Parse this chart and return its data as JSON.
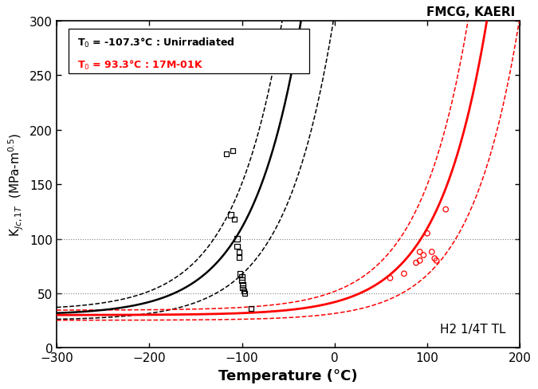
{
  "title_text": "FMCG, KAERI",
  "xlabel": "Temperature (°C)",
  "ylabel": "K$_{Jc,1T}$  (MPa-m$^{0.5}$)",
  "xlim": [
    -300,
    200
  ],
  "ylim": [
    0,
    300
  ],
  "xticks": [
    -300,
    -200,
    -100,
    0,
    100,
    200
  ],
  "yticks": [
    0,
    50,
    100,
    150,
    200,
    250,
    300
  ],
  "hlines": [
    50,
    100
  ],
  "T0_black": -107.3,
  "T0_red": 93.3,
  "legend_line1": "T$_0$ = -107.3°C : Unirradiated",
  "legend_line2": "T$_0$ = 93.3°C : 17M-01K",
  "annotation": "H2 1/4T TL",
  "scatter_black_x": [
    -117,
    -112,
    -108,
    -105,
    -105,
    -103,
    -103,
    -102,
    -100,
    -100,
    -99,
    -99,
    -98,
    -97,
    -90,
    -110
  ],
  "scatter_black_y": [
    178,
    122,
    118,
    100,
    93,
    88,
    83,
    68,
    65,
    62,
    58,
    55,
    52,
    50,
    36,
    181
  ],
  "scatter_red_x": [
    60,
    75,
    88,
    92,
    92,
    96,
    100,
    105,
    108,
    110,
    120
  ],
  "scatter_red_y": [
    64,
    68,
    78,
    88,
    80,
    85,
    105,
    88,
    82,
    80,
    127
  ],
  "background_color": "#ffffff",
  "figsize": [
    6.75,
    4.89
  ],
  "dpi": 100
}
